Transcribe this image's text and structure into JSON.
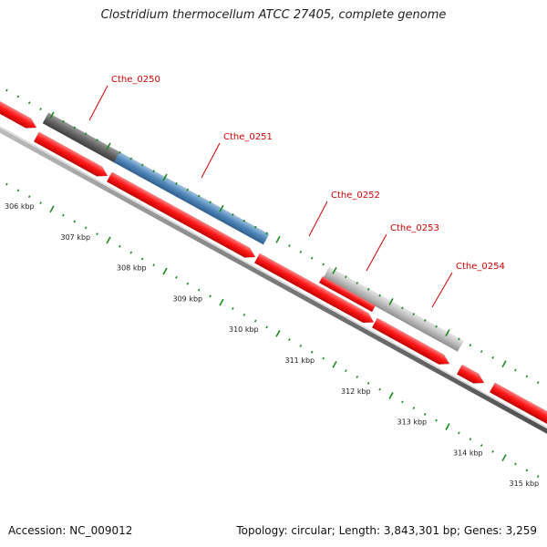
{
  "title": "Clostridium thermocellum ATCC 27405, complete genome",
  "footer": {
    "accession": "Accession: NC_009012",
    "topology": "Topology: circular; Length: 3,843,301 bp; Genes: 3,259"
  },
  "colors": {
    "cds": "#ff1a1a",
    "backbone": "#7a7a7a",
    "tick": "#1a8a1a",
    "label": "#cc0000",
    "gene_blue": "#4f86b8",
    "gene_dark": "#646464",
    "gene_light": "#bcbcbc"
  },
  "ticks": {
    "labels": [
      "306 kbp",
      "307 kbp",
      "308 kbp",
      "309 kbp",
      "310 kbp",
      "311 kbp",
      "312 kbp",
      "313 kbp",
      "314 kbp",
      "315 kbp"
    ]
  },
  "genes": [
    {
      "label": "Cthe_0250",
      "color": "gene_dark"
    },
    {
      "label": "Cthe_0251",
      "color": "gene_blue"
    },
    {
      "label": "Cthe_0252",
      "color": "cds"
    },
    {
      "label": "Cthe_0253",
      "color": "gene_light"
    },
    {
      "label": "Cthe_0254",
      "color": "cds"
    }
  ]
}
